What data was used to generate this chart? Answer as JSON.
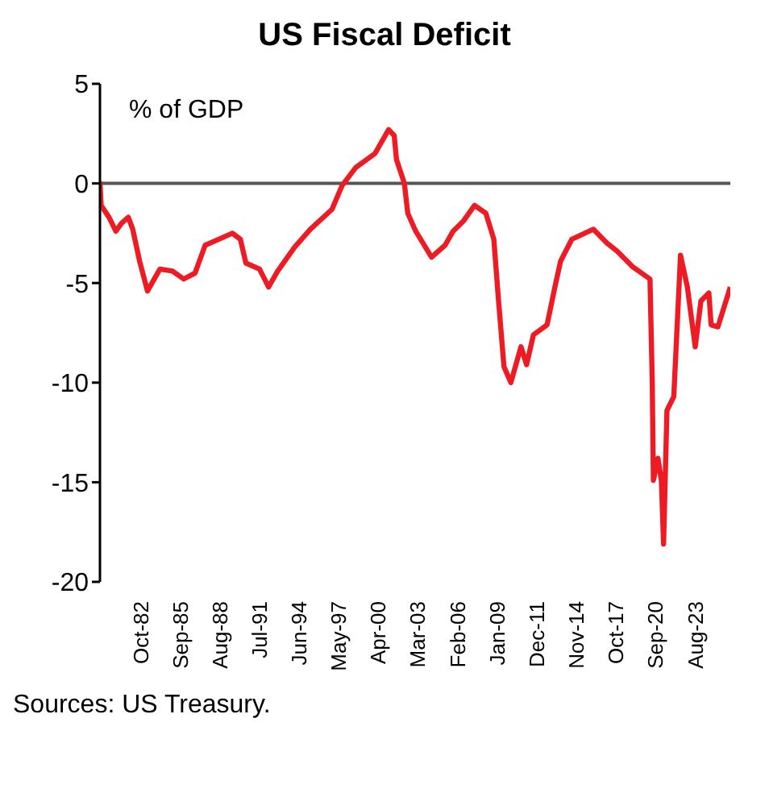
{
  "chart_data": {
    "type": "line",
    "title": "US Fiscal Deficit",
    "ylabel": "% of GDP",
    "annotations": [
      "Sources: US Treasury."
    ],
    "x": [
      "1979-10",
      "1979-11",
      "1980-06",
      "1980-12",
      "1981-05",
      "1981-11",
      "1982-03",
      "1982-09",
      "1983-04",
      "1984-03",
      "1985-02",
      "1985-12",
      "1986-10",
      "1987-07",
      "1988-07",
      "1989-07",
      "1990-02",
      "1990-07",
      "1991-07",
      "1992-03",
      "1992-11",
      "1994-02",
      "1995-04",
      "1996-11",
      "1997-08",
      "1998-08",
      "2000-01",
      "2001-01",
      "2001-06",
      "2001-08",
      "2002-03",
      "2002-06",
      "2003-01",
      "2004-03",
      "2005-03",
      "2005-10",
      "2006-07",
      "2007-05",
      "2008-03",
      "2008-10",
      "2009-02",
      "2009-07",
      "2010-01",
      "2010-10",
      "2011-03",
      "2011-09",
      "2012-09",
      "2013-04",
      "2013-09",
      "2014-07",
      "2016-02",
      "2017-02",
      "2017-11",
      "2019-01",
      "2020-04",
      "2020-06",
      "2020-07",
      "2020-11",
      "2021-02",
      "2021-04",
      "2021-07",
      "2022-01",
      "2022-07",
      "2023-01",
      "2023-08",
      "2024-01",
      "2024-08",
      "2024-10",
      "2025-04",
      "2026-03"
    ],
    "series": [
      {
        "color": "#ed1c24",
        "values": [
          0.1,
          -1.1,
          -1.7,
          -2.4,
          -2.0,
          -1.7,
          -2.3,
          -3.9,
          -5.4,
          -4.3,
          -4.4,
          -4.8,
          -4.5,
          -3.1,
          -2.8,
          -2.5,
          -2.8,
          -4.0,
          -4.3,
          -5.2,
          -4.4,
          -3.2,
          -2.3,
          -1.3,
          -0.1,
          0.8,
          1.5,
          2.7,
          2.4,
          1.2,
          0,
          -1.5,
          -2.4,
          -3.7,
          -3.1,
          -2.4,
          -1.9,
          -1.1,
          -1.5,
          -2.8,
          -5.8,
          -9.2,
          -10.0,
          -8.2,
          -9.1,
          -7.6,
          -7.1,
          -5.2,
          -3.9,
          -2.8,
          -2.3,
          -3.0,
          -3.4,
          -4.2,
          -4.8,
          -10.0,
          -14.9,
          -13.8,
          -14.9,
          -18.1,
          -11.4,
          -10.7,
          -3.6,
          -5.2,
          -8.2,
          -5.9,
          -5.5,
          -7.1,
          -7.2,
          -5.2
        ]
      }
    ],
    "xlim": [
      "1979-10",
      "2026-03"
    ],
    "xticks": [
      {
        "value": "1982-10",
        "label": "Oct-82"
      },
      {
        "value": "1985-09",
        "label": "Sep-85"
      },
      {
        "value": "1988-08",
        "label": "Aug-88"
      },
      {
        "value": "1991-07",
        "label": "Jul-91"
      },
      {
        "value": "1994-06",
        "label": "Jun-94"
      },
      {
        "value": "1997-05",
        "label": "May-97"
      },
      {
        "value": "2000-04",
        "label": "Apr-00"
      },
      {
        "value": "2003-03",
        "label": "Mar-03"
      },
      {
        "value": "2006-02",
        "label": "Feb-06"
      },
      {
        "value": "2009-01",
        "label": "Jan-09"
      },
      {
        "value": "2011-12",
        "label": "Dec-11"
      },
      {
        "value": "2014-11",
        "label": "Nov-14"
      },
      {
        "value": "2017-10",
        "label": "Oct-17"
      },
      {
        "value": "2020-09",
        "label": "Sep-20"
      },
      {
        "value": "2023-08",
        "label": "Aug-23"
      }
    ],
    "ylim": [
      -20,
      5
    ],
    "yticks": [
      -20,
      -15,
      -10,
      -5,
      0,
      5
    ],
    "ref_lines": [
      {
        "axis": "y",
        "value": 0,
        "color": "#555555"
      }
    ]
  }
}
